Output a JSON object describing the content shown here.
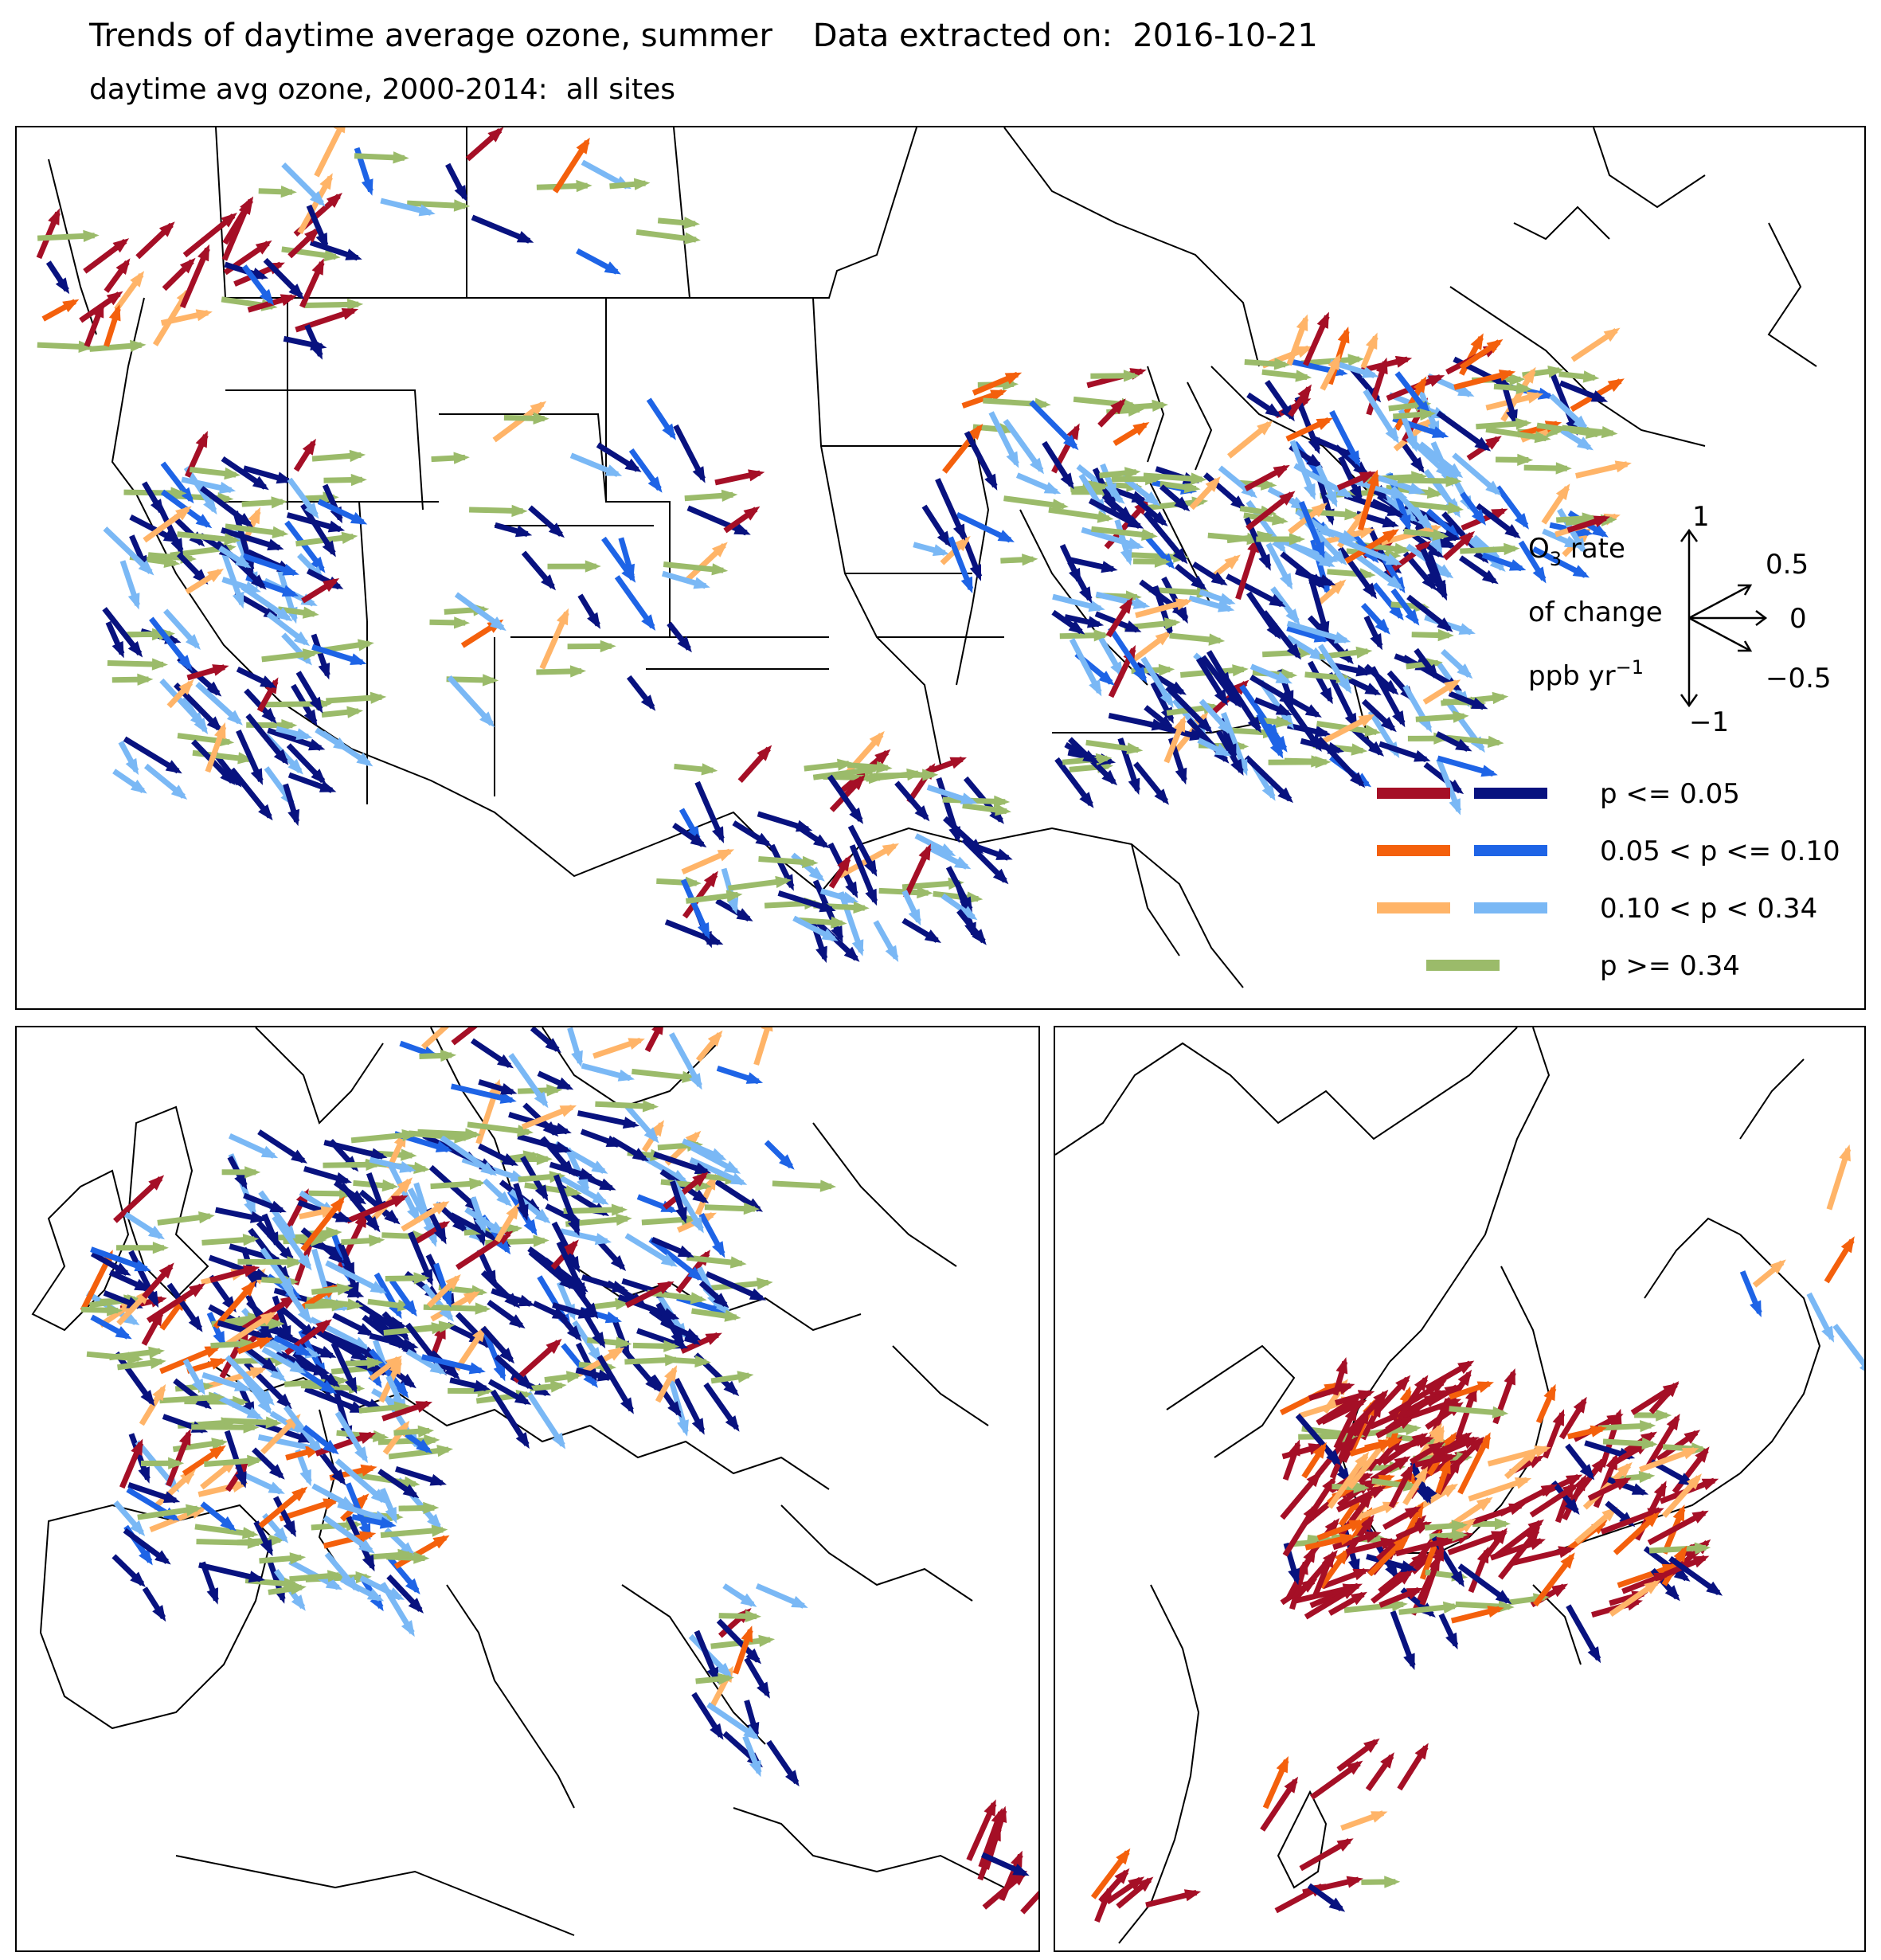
{
  "title": "Trends of daytime average ozone, summer    Data extracted on:  2016-10-21",
  "subtitle": "daytime avg ozone, 2000-2014:  all sites",
  "colors": {
    "inc_p005": "#a50f26",
    "dec_p005": "#08127f",
    "inc_p010": "#f4600c",
    "dec_p010": "#1e64e6",
    "inc_p034": "#ffb468",
    "dec_p034": "#7ab8f5",
    "insig": "#9bbb6a",
    "map_line": "#000000"
  },
  "scale_key": {
    "title_line1": "O",
    "title_sub": "3",
    "title_line1_rest": " rate",
    "title_line2": "of change",
    "title_line3": "ppb yr",
    "title_sup": "−1",
    "labels": [
      {
        "value": "1",
        "angle_deg": 90
      },
      {
        "value": "0.5",
        "angle_deg": 30
      },
      {
        "value": "0",
        "angle_deg": 0
      },
      {
        "value": "−0.5",
        "angle_deg": -30
      },
      {
        "value": "−1",
        "angle_deg": -90
      }
    ]
  },
  "legend": [
    {
      "label": "p <= 0.05",
      "colors": [
        "inc_p005",
        "dec_p005"
      ]
    },
    {
      "label": "0.05 < p <= 0.10",
      "colors": [
        "inc_p010",
        "dec_p010"
      ]
    },
    {
      "label": "0.10 < p < 0.34",
      "colors": [
        "inc_p034",
        "dec_p034"
      ]
    },
    {
      "label": "p >= 0.34",
      "colors": [
        "insig"
      ]
    }
  ],
  "panels": [
    {
      "id": "north-america",
      "region": "North America"
    },
    {
      "id": "europe",
      "region": "Europe"
    },
    {
      "id": "east-asia",
      "region": "East Asia"
    }
  ]
}
